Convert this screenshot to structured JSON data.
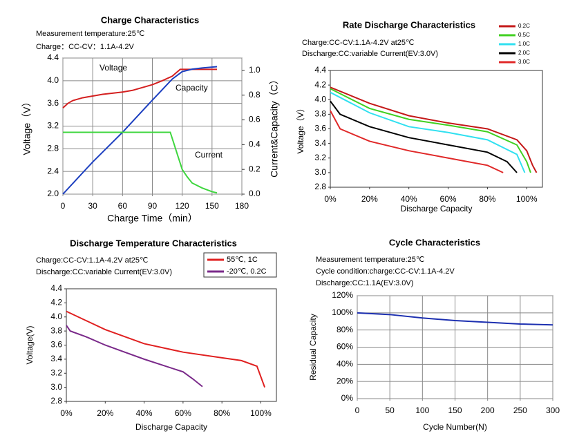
{
  "chart_data": [
    {
      "type": "line",
      "title": "Charge Characteristics",
      "subtitle": [
        "Measurement temperature:25℃",
        "Charge：CC-CV：1.1A-4.2V"
      ],
      "xlabel": "Charge Time（min）",
      "ylabel": "Voltage（V）",
      "y2label": "Current&Capacity（C）",
      "xlim": [
        0,
        180
      ],
      "xticks": [
        0,
        30,
        60,
        90,
        120,
        150,
        180
      ],
      "ylim": [
        2.0,
        4.4
      ],
      "yticks": [
        {
          "value": 2.0,
          "label": "2.0"
        },
        2.4,
        2.8,
        3.2,
        3.6,
        {
          "value": 4.0,
          "label": "4.0"
        },
        4.4
      ],
      "y2lim": [
        0,
        1.1
      ],
      "y2ticks": [
        {
          "value": 0,
          "label": "0.0"
        },
        0.2,
        0.4,
        0.6,
        0.8,
        {
          "value": 1.0,
          "label": "1.0"
        }
      ],
      "grid": true,
      "series": [
        {
          "name": "Voltage",
          "color": "#d42020",
          "x": [
            0,
            5,
            10,
            20,
            30,
            40,
            50,
            60,
            70,
            80,
            90,
            100,
            110,
            118,
            130,
            155
          ],
          "values": [
            3.52,
            3.6,
            3.65,
            3.7,
            3.73,
            3.76,
            3.78,
            3.8,
            3.83,
            3.88,
            3.93,
            4.0,
            4.08,
            4.2,
            4.2,
            4.2
          ]
        },
        {
          "name": "Capacity",
          "color": "#1c3fc0",
          "axis": "y2",
          "x": [
            0,
            30,
            60,
            90,
            110,
            120,
            130,
            140,
            155
          ],
          "values": [
            0,
            0.26,
            0.5,
            0.76,
            0.93,
            0.99,
            1.01,
            1.02,
            1.03
          ]
        },
        {
          "name": "Current",
          "color": "#3ed63e",
          "axis": "y2",
          "x": [
            0,
            60,
            108,
            112,
            116,
            120,
            125,
            130,
            140,
            150,
            155
          ],
          "values": [
            0.5,
            0.5,
            0.5,
            0.4,
            0.3,
            0.2,
            0.14,
            0.09,
            0.05,
            0.02,
            0.01
          ]
        }
      ]
    },
    {
      "type": "line",
      "title": "Rate Discharge Characteristics",
      "subtitle": [
        "Charge:CC-CV:1.1A-4.2V  at25℃",
        "Discharge:CC:variable Current(EV:3.0V)"
      ],
      "xlabel": "Discharge Capacity",
      "ylabel": "Voltage（V）",
      "xlim": [
        0,
        108
      ],
      "xticks": [
        {
          "value": 0,
          "label": "0%"
        },
        {
          "value": 20,
          "label": "20%"
        },
        {
          "value": 40,
          "label": "40%"
        },
        {
          "value": 60,
          "label": "60%"
        },
        {
          "value": 80,
          "label": "80%"
        },
        {
          "value": 100,
          "label": "100%"
        }
      ],
      "ylim": [
        2.8,
        4.4
      ],
      "yticks": [
        2.8,
        {
          "value": 3.0,
          "label": "3.0"
        },
        3.2,
        3.4,
        3.6,
        3.8,
        {
          "value": 4.0,
          "label": "4.0"
        },
        4.2,
        4.4
      ],
      "grid": false,
      "series": [
        {
          "name": "0.2C",
          "color": "#c41818",
          "x": [
            0,
            20,
            40,
            60,
            80,
            95,
            100,
            103,
            105
          ],
          "values": [
            4.17,
            3.95,
            3.78,
            3.68,
            3.6,
            3.45,
            3.3,
            3.1,
            3.0
          ]
        },
        {
          "name": "0.5C",
          "color": "#40d020",
          "x": [
            0,
            20,
            40,
            60,
            80,
            95,
            100,
            102
          ],
          "values": [
            4.15,
            3.88,
            3.73,
            3.65,
            3.56,
            3.38,
            3.15,
            3.0
          ]
        },
        {
          "name": "1.0C",
          "color": "#30e0f0",
          "x": [
            0,
            20,
            40,
            60,
            80,
            95,
            99
          ],
          "values": [
            4.1,
            3.82,
            3.63,
            3.55,
            3.45,
            3.25,
            3.0
          ]
        },
        {
          "name": "2.0C",
          "color": "#000000",
          "x": [
            0,
            5,
            20,
            40,
            60,
            80,
            90,
            95
          ],
          "values": [
            3.98,
            3.8,
            3.63,
            3.48,
            3.38,
            3.28,
            3.15,
            3.0
          ]
        },
        {
          "name": "3.0C",
          "color": "#e02828",
          "x": [
            0,
            5,
            20,
            40,
            60,
            80,
            88
          ],
          "values": [
            3.85,
            3.6,
            3.43,
            3.3,
            3.2,
            3.1,
            3.0
          ]
        }
      ]
    },
    {
      "type": "line",
      "title": "Discharge Temperature Characteristics",
      "subtitle": [
        "Charge:CC-CV:1.1A-4.2V  at25℃",
        "Discharge:CC:variable Current(EV:3.0V)"
      ],
      "xlabel": "Discharge Capacity",
      "ylabel": "Voltage(V)",
      "xlim": [
        0,
        108
      ],
      "xticks": [
        {
          "value": 0,
          "label": "0%"
        },
        {
          "value": 20,
          "label": "20%"
        },
        {
          "value": 40,
          "label": "40%"
        },
        {
          "value": 60,
          "label": "60%"
        },
        {
          "value": 80,
          "label": "80%"
        },
        {
          "value": 100,
          "label": "100%"
        }
      ],
      "ylim": [
        2.8,
        4.4
      ],
      "yticks": [
        2.8,
        {
          "value": 3.0,
          "label": "3.0"
        },
        3.2,
        3.4,
        3.6,
        3.8,
        {
          "value": 4.0,
          "label": "4.0"
        },
        4.2,
        4.4
      ],
      "grid": false,
      "series": [
        {
          "name": "55℃, 1C",
          "color": "#e02020",
          "x": [
            0,
            10,
            20,
            40,
            60,
            80,
            90,
            98,
            100,
            102
          ],
          "values": [
            4.08,
            3.95,
            3.82,
            3.62,
            3.5,
            3.42,
            3.38,
            3.3,
            3.15,
            3.0
          ]
        },
        {
          "name": "-20℃, 0.2C",
          "color": "#7a2a8a",
          "x": [
            0,
            2,
            10,
            20,
            40,
            60,
            65,
            70
          ],
          "values": [
            3.88,
            3.8,
            3.72,
            3.6,
            3.4,
            3.22,
            3.12,
            3.01
          ]
        }
      ]
    },
    {
      "type": "line",
      "title": "Cycle Characteristics",
      "subtitle": [
        "Measurement temperature:25℃",
        "Cycle condition:charge:CC-CV:1.1A-4.2V",
        "Discharge:CC:1.1A(EV:3.0V)"
      ],
      "xlabel": "Cycle Number(N)",
      "ylabel": "Residual Capacity",
      "xlim": [
        0,
        300
      ],
      "xticks": [
        0,
        50,
        100,
        150,
        200,
        250,
        300
      ],
      "ylim": [
        0,
        120
      ],
      "yticks": [
        {
          "value": 0,
          "label": "0%"
        },
        {
          "value": 20,
          "label": "20%"
        },
        {
          "value": 40,
          "label": "40%"
        },
        {
          "value": 60,
          "label": "60%"
        },
        {
          "value": 80,
          "label": "80%"
        },
        {
          "value": 100,
          "label": "100%"
        },
        {
          "value": 120,
          "label": "120%"
        }
      ],
      "grid": true,
      "series": [
        {
          "name": "Residual Capacity",
          "color": "#1c2fb0",
          "x": [
            0,
            50,
            100,
            150,
            200,
            250,
            300
          ],
          "values": [
            100,
            98,
            94,
            91,
            89,
            87,
            86
          ]
        }
      ]
    }
  ]
}
